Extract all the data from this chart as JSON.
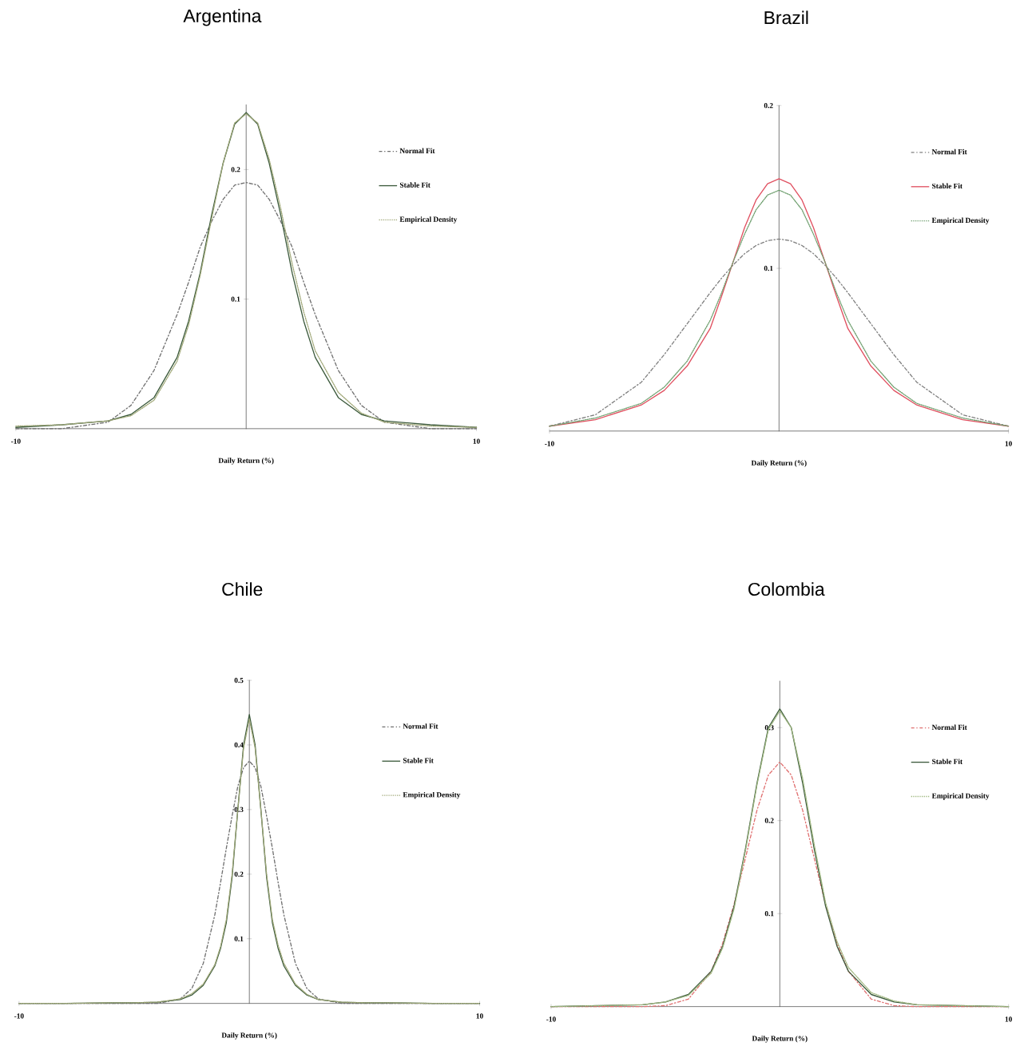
{
  "chart_data": [
    {
      "type": "line",
      "title": "Argentina",
      "xlabel": "Daily Return (%)",
      "xlim": [
        -10,
        10
      ],
      "xticks": [
        -10,
        10
      ],
      "ylim": [
        0,
        0.25
      ],
      "yticks": [
        0.1,
        0.2
      ],
      "legend": "top right",
      "x": [
        -10,
        -8,
        -6,
        -5,
        -4,
        -3,
        -2.5,
        -2,
        -1.5,
        -1,
        -0.5,
        0,
        0.5,
        1,
        1.5,
        2,
        2.5,
        3,
        4,
        5,
        6,
        8,
        10
      ],
      "series": [
        {
          "name": "Normal Fit",
          "color": "#707070",
          "line_style": "dashed",
          "values": [
            0,
            0,
            0.005,
            0.018,
            0.045,
            0.088,
            0.113,
            0.14,
            0.16,
            0.177,
            0.188,
            0.19,
            0.188,
            0.177,
            0.16,
            0.14,
            0.113,
            0.088,
            0.045,
            0.018,
            0.005,
            0,
            0
          ]
        },
        {
          "name": "Stable Fit",
          "color": "#3c5a3c",
          "line_style": "solid",
          "values": [
            0.001,
            0.003,
            0.006,
            0.011,
            0.024,
            0.055,
            0.083,
            0.12,
            0.165,
            0.205,
            0.235,
            0.244,
            0.235,
            0.205,
            0.165,
            0.12,
            0.083,
            0.055,
            0.024,
            0.011,
            0.006,
            0.003,
            0.001
          ]
        },
        {
          "name": "Empirical Density",
          "color": "#a0a878",
          "line_style": "dotted",
          "values": [
            0.002,
            0.003,
            0.006,
            0.01,
            0.022,
            0.052,
            0.08,
            0.118,
            0.162,
            0.205,
            0.236,
            0.243,
            0.236,
            0.208,
            0.17,
            0.127,
            0.09,
            0.06,
            0.028,
            0.012,
            0.005,
            0.002,
            0.001
          ]
        }
      ]
    },
    {
      "type": "line",
      "title": "Brazil",
      "xlabel": "Daily Return (%)",
      "xlim": [
        -10,
        10
      ],
      "xticks": [
        -10,
        10
      ],
      "ylim": [
        0,
        0.2
      ],
      "yticks": [
        0.1,
        0.2
      ],
      "legend": "top right",
      "x": [
        -10,
        -8,
        -6,
        -5,
        -4,
        -3,
        -2.5,
        -2,
        -1.5,
        -1,
        -0.5,
        0,
        0.5,
        1,
        1.5,
        2,
        2.5,
        3,
        4,
        5,
        6,
        8,
        10
      ],
      "series": [
        {
          "name": "Normal Fit",
          "color": "#808080",
          "line_style": "dashed",
          "values": [
            0.003,
            0.01,
            0.03,
            0.047,
            0.066,
            0.085,
            0.094,
            0.102,
            0.109,
            0.114,
            0.117,
            0.118,
            0.117,
            0.114,
            0.109,
            0.102,
            0.094,
            0.085,
            0.066,
            0.047,
            0.03,
            0.01,
            0.003
          ]
        },
        {
          "name": "Stable Fit",
          "color": "#e05060",
          "line_style": "solid",
          "values": [
            0.003,
            0.007,
            0.016,
            0.025,
            0.04,
            0.063,
            0.083,
            0.104,
            0.125,
            0.142,
            0.152,
            0.155,
            0.152,
            0.142,
            0.125,
            0.104,
            0.083,
            0.063,
            0.04,
            0.025,
            0.016,
            0.007,
            0.003
          ]
        },
        {
          "name": "Empirical Density",
          "color": "#70a070",
          "line_style": "dotted",
          "values": [
            0.003,
            0.008,
            0.017,
            0.027,
            0.043,
            0.068,
            0.085,
            0.104,
            0.121,
            0.136,
            0.145,
            0.148,
            0.145,
            0.136,
            0.121,
            0.104,
            0.085,
            0.068,
            0.043,
            0.027,
            0.017,
            0.008,
            0.003
          ]
        }
      ]
    },
    {
      "type": "line",
      "title": "Chile",
      "xlabel": "Daily Return (%)",
      "xlim": [
        -10,
        10
      ],
      "xticks": [
        -10,
        10
      ],
      "ylim": [
        0,
        0.5
      ],
      "yticks": [
        0.1,
        0.2,
        0.3,
        0.4,
        0.5
      ],
      "legend": "top right",
      "x": [
        -10,
        -8,
        -6,
        -5,
        -4,
        -3,
        -2.5,
        -2,
        -1.5,
        -1.25,
        -1,
        -0.75,
        -0.5,
        -0.25,
        0,
        0.25,
        0.5,
        0.75,
        1,
        1.25,
        1.5,
        2,
        2.5,
        3,
        4,
        5,
        6,
        8,
        10
      ],
      "series": [
        {
          "name": "Normal Fit",
          "color": "#707070",
          "line_style": "dashed",
          "values": [
            0,
            0,
            0,
            0,
            0,
            0.007,
            0.023,
            0.062,
            0.137,
            0.187,
            0.24,
            0.29,
            0.336,
            0.365,
            0.375,
            0.365,
            0.336,
            0.29,
            0.24,
            0.187,
            0.137,
            0.062,
            0.023,
            0.007,
            0,
            0,
            0,
            0,
            0
          ]
        },
        {
          "name": "Stable Fit",
          "color": "#3c5a3c",
          "line_style": "solid",
          "values": [
            0,
            0,
            0.001,
            0.001,
            0.002,
            0.006,
            0.013,
            0.028,
            0.058,
            0.085,
            0.125,
            0.195,
            0.3,
            0.4,
            0.447,
            0.4,
            0.3,
            0.195,
            0.125,
            0.085,
            0.058,
            0.028,
            0.013,
            0.006,
            0.002,
            0.001,
            0.001,
            0,
            0
          ]
        },
        {
          "name": "Empirical Density",
          "color": "#a0a878",
          "line_style": "dotted",
          "values": [
            0,
            0,
            0.001,
            0.001,
            0.002,
            0.007,
            0.015,
            0.03,
            0.06,
            0.088,
            0.13,
            0.2,
            0.3,
            0.395,
            0.44,
            0.395,
            0.3,
            0.2,
            0.13,
            0.09,
            0.062,
            0.03,
            0.014,
            0.006,
            0.002,
            0.001,
            0.001,
            0,
            0
          ]
        }
      ]
    },
    {
      "type": "line",
      "title": "Colombia",
      "xlabel": "Daily Return (%)",
      "xlim": [
        -10,
        10
      ],
      "xticks": [
        -10,
        10
      ],
      "ylim": [
        0,
        0.35
      ],
      "yticks": [
        0.1,
        0.2,
        0.3
      ],
      "legend": "top right",
      "x": [
        -10,
        -8,
        -6,
        -5,
        -4,
        -3,
        -2.5,
        -2,
        -1.5,
        -1,
        -0.5,
        0,
        0.5,
        1,
        1.5,
        2,
        2.5,
        3,
        4,
        5,
        6,
        8,
        10
      ],
      "series": [
        {
          "name": "Normal Fit",
          "color": "#e07070",
          "line_style": "dashed",
          "values": [
            0,
            0,
            0,
            0.001,
            0.008,
            0.038,
            0.068,
            0.11,
            0.16,
            0.211,
            0.249,
            0.263,
            0.249,
            0.211,
            0.16,
            0.11,
            0.068,
            0.038,
            0.008,
            0.001,
            0,
            0,
            0
          ]
        },
        {
          "name": "Stable Fit",
          "color": "#3c5a3c",
          "line_style": "solid",
          "values": [
            0,
            0.001,
            0.002,
            0.005,
            0.013,
            0.038,
            0.065,
            0.108,
            0.17,
            0.24,
            0.3,
            0.32,
            0.3,
            0.24,
            0.17,
            0.108,
            0.065,
            0.038,
            0.013,
            0.005,
            0.002,
            0.001,
            0
          ]
        },
        {
          "name": "Empirical Density",
          "color": "#a0b880",
          "line_style": "dotted",
          "values": [
            0,
            0.001,
            0.002,
            0.005,
            0.012,
            0.036,
            0.063,
            0.105,
            0.168,
            0.238,
            0.298,
            0.318,
            0.3,
            0.245,
            0.175,
            0.112,
            0.07,
            0.042,
            0.015,
            0.006,
            0.002,
            0.001,
            0
          ]
        }
      ]
    }
  ]
}
